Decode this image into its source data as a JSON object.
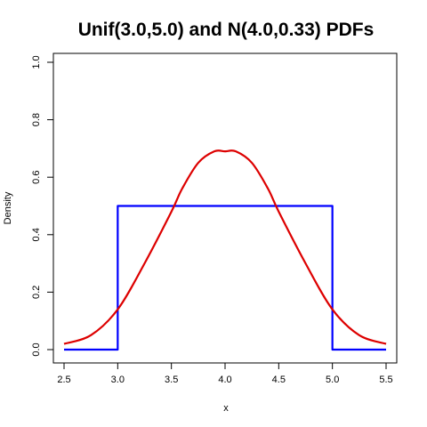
{
  "chart_data": {
    "type": "line",
    "title": "Unif(3.0,5.0) and N(4.0,0.33) PDFs",
    "xlabel": "x",
    "ylabel": "Density",
    "xlim": [
      2.5,
      5.5
    ],
    "ylim": [
      0.0,
      1.0
    ],
    "x_ticks": [
      2.5,
      3.0,
      3.5,
      4.0,
      4.5,
      5.0,
      5.5
    ],
    "x_tick_labels": [
      "2.5",
      "3.0",
      "3.5",
      "4.0",
      "4.5",
      "5.0",
      "5.5"
    ],
    "y_ticks": [
      0.0,
      0.2,
      0.4,
      0.6,
      0.8,
      1.0
    ],
    "y_tick_labels": [
      "0.0",
      "0.2",
      "0.4",
      "0.6",
      "0.8",
      "1.0"
    ],
    "grid": false,
    "series": [
      {
        "color": "#0000ff",
        "x": [
          2.5,
          3.0,
          3.0,
          5.0,
          5.0,
          5.5
        ],
        "y": [
          0.0,
          0.0,
          0.5,
          0.5,
          0.0,
          0.0
        ]
      },
      {
        "color": "#dd0000",
        "x": [
          2.5,
          2.75,
          3.0,
          3.25,
          3.5,
          3.6,
          3.75,
          3.9,
          4.0,
          4.1,
          4.25,
          4.4,
          4.5,
          4.75,
          5.0,
          5.25,
          5.5
        ],
        "y": [
          0.02,
          0.05,
          0.14,
          0.3,
          0.48,
          0.56,
          0.65,
          0.69,
          0.69,
          0.69,
          0.65,
          0.56,
          0.48,
          0.3,
          0.14,
          0.05,
          0.02
        ]
      }
    ]
  }
}
